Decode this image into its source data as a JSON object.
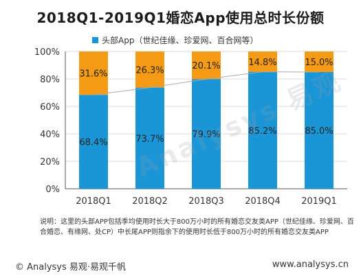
{
  "title": "2018Q1-2019Q1婚恋App使用总时长份额",
  "legend": {
    "label": "头部App（世纪佳缘、珍爱网、百合网等）",
    "color": "#1a96d7"
  },
  "colors": {
    "head": "#1a96d7",
    "tail": "#f59a14",
    "trend": "#aaaaaa",
    "grid": "#dddddd",
    "axis": "#555555"
  },
  "chart_data": {
    "type": "bar",
    "stacked": true,
    "categories": [
      "2018Q1",
      "2018Q2",
      "2018Q3",
      "2018Q4",
      "2019Q1"
    ],
    "series": [
      {
        "name": "头部App（世纪佳缘、珍爱网、百合网等）",
        "values": [
          68.4,
          73.7,
          79.9,
          85.2,
          85.0
        ]
      },
      {
        "values": [
          31.6,
          26.3,
          20.1,
          14.8,
          15.0
        ]
      }
    ],
    "value_labels_head": [
      "68.4%",
      "73.7%",
      "79.9%",
      "85.2%",
      "85.0%"
    ],
    "value_labels_tail": [
      "31.6%",
      "26.3%",
      "20.1%",
      "14.8%",
      "15.0%"
    ],
    "y_ticks": [
      "0%",
      "20%",
      "40%",
      "60%",
      "80%",
      "100%"
    ],
    "ylim": [
      0,
      100
    ],
    "legend_position": "top",
    "grid": true
  },
  "note": "说明：这里的头部APP包括季均使用时长大于800万小时的所有婚恋交友类APP（世纪佳缘、珍爱网、百合婚恋、有缘网、处CP）中长尾APP则指余下的使用时长低于800万小时的所有婚恋交友类APP",
  "footer": {
    "left": "© Analysys 易观·易观千帆",
    "right": "www.analysys.cn"
  },
  "watermark": "Analysys 易观"
}
